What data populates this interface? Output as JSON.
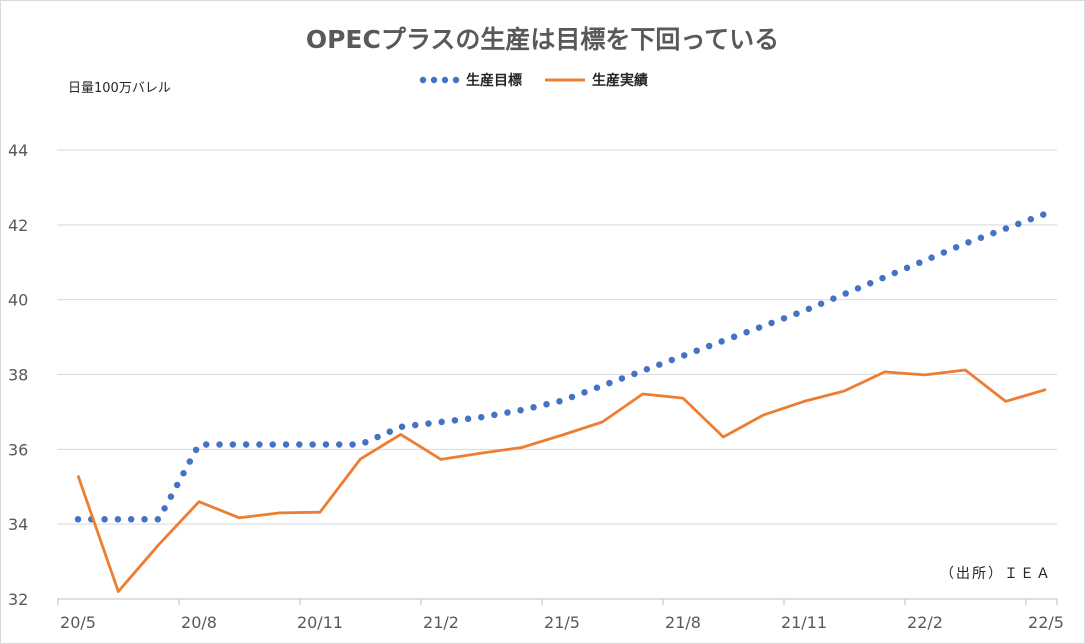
{
  "chart_data": {
    "type": "line",
    "title": "OPECプラスの生産は目標を下回っている",
    "ylabel": "日量100万バレル",
    "source": "（出所）ＩＥＡ",
    "ylim": [
      32,
      44
    ],
    "yticks": [
      32,
      34,
      36,
      38,
      40,
      42,
      44
    ],
    "grid": true,
    "legend_position": "top-center",
    "x_tick_labels": [
      "20/5",
      "20/8",
      "20/11",
      "21/2",
      "21/5",
      "21/8",
      "21/11",
      "22/2",
      "22/5"
    ],
    "colors": {
      "target": "#4472C4",
      "actual": "#ED7D31"
    },
    "series": [
      {
        "name": "生産目標",
        "style": "dotted",
        "points": [
          [
            0,
            34.13
          ],
          [
            1,
            34.13
          ],
          [
            2,
            34.13
          ],
          [
            3,
            36.13
          ],
          [
            4,
            36.13
          ],
          [
            5,
            36.13
          ],
          [
            6,
            36.13
          ],
          [
            7,
            36.13
          ],
          [
            8,
            36.6
          ],
          [
            9,
            36.73
          ],
          [
            10,
            36.86
          ],
          [
            11,
            37.05
          ],
          [
            12,
            37.3
          ],
          [
            13,
            37.7
          ],
          [
            14,
            38.1
          ],
          [
            15,
            38.5
          ],
          [
            16,
            38.9
          ],
          [
            17,
            39.3
          ],
          [
            18,
            39.7
          ],
          [
            19,
            40.15
          ],
          [
            20,
            40.6
          ],
          [
            21,
            41.05
          ],
          [
            22,
            41.5
          ],
          [
            23,
            41.9
          ],
          [
            24,
            42.3
          ]
        ]
      },
      {
        "name": "生産実績",
        "style": "solid",
        "points": [
          [
            0,
            35.3
          ],
          [
            1,
            32.2
          ],
          [
            2,
            33.45
          ],
          [
            3,
            34.6
          ],
          [
            4,
            34.17
          ],
          [
            5,
            34.3
          ],
          [
            6,
            34.32
          ],
          [
            7,
            35.74
          ],
          [
            8,
            36.4
          ],
          [
            9,
            35.73
          ],
          [
            10,
            35.9
          ],
          [
            11,
            36.05
          ],
          [
            12,
            36.38
          ],
          [
            13,
            36.73
          ],
          [
            14,
            37.48
          ],
          [
            15,
            37.37
          ],
          [
            16,
            36.33
          ],
          [
            17,
            36.92
          ],
          [
            18,
            37.28
          ],
          [
            19,
            37.56
          ],
          [
            20,
            38.07
          ],
          [
            21,
            37.99
          ],
          [
            22,
            38.12
          ],
          [
            23,
            37.28
          ],
          [
            24,
            37.6
          ]
        ]
      }
    ]
  }
}
